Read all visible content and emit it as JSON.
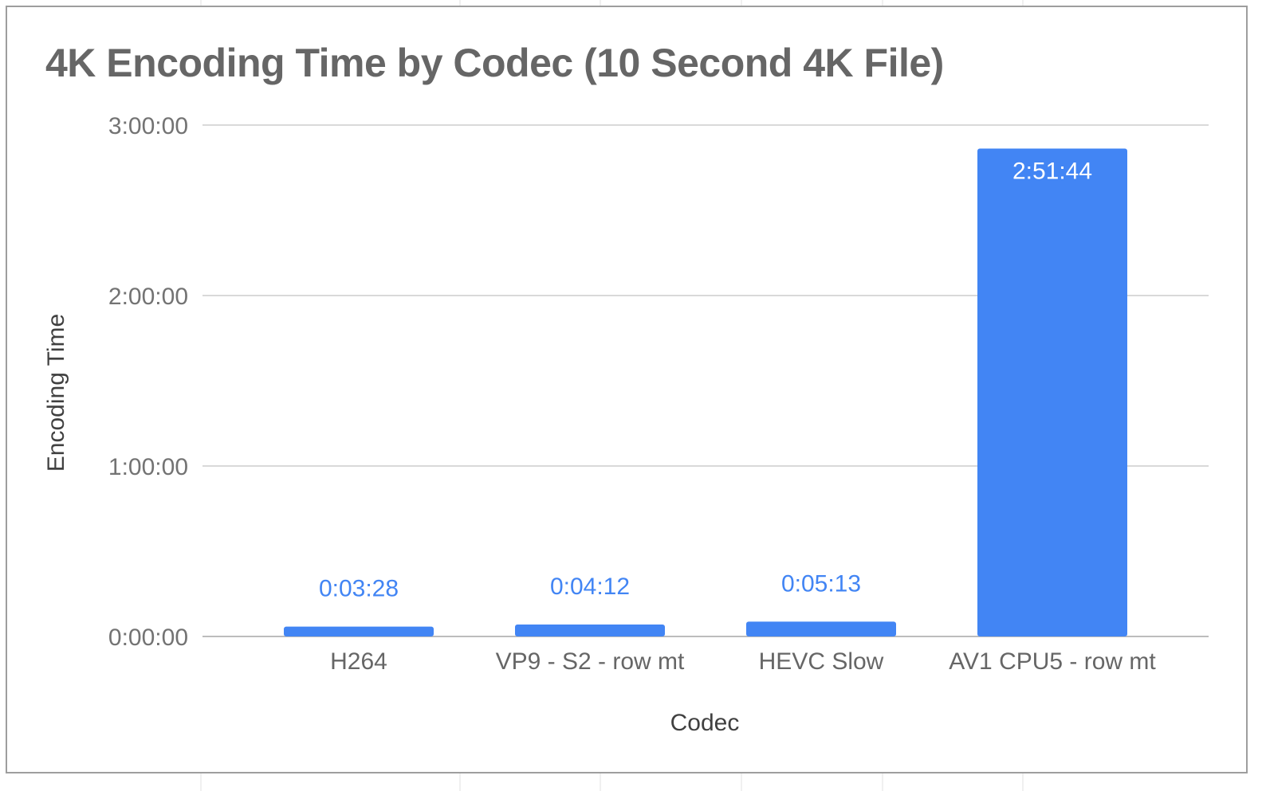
{
  "chart_data": {
    "type": "bar",
    "title": "4K Encoding Time by Codec (10 Second 4K File)",
    "xlabel": "Codec",
    "ylabel": "Encoding Time",
    "categories": [
      "H264",
      "VP9 - S2 - row mt",
      "HEVC Slow",
      "AV1 CPU5 - row mt"
    ],
    "values_seconds": [
      208,
      252,
      313,
      10304
    ],
    "data_labels": [
      "0:03:28",
      "0:04:12",
      "0:05:13",
      "2:51:44"
    ],
    "ylim_seconds": [
      0,
      10800
    ],
    "yticks_seconds": [
      0,
      3600,
      7200,
      10800
    ],
    "ytick_labels": [
      "0:00:00",
      "1:00:00",
      "2:00:00",
      "3:00:00"
    ],
    "grid": true,
    "legend": "none",
    "bar_color": "#4285f4"
  }
}
